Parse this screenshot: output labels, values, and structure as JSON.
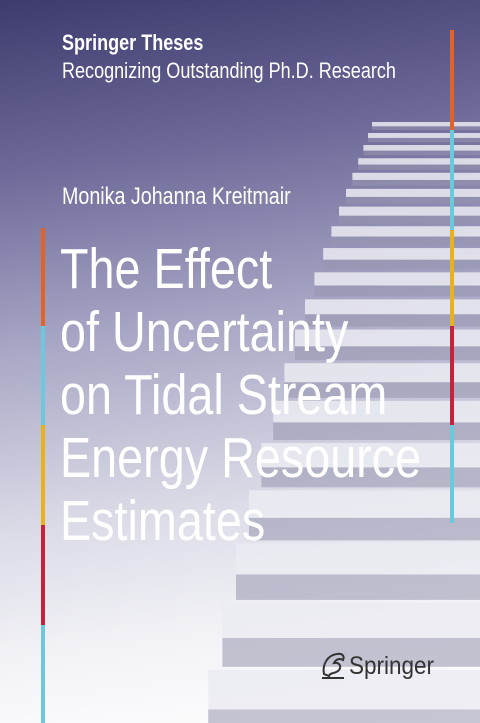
{
  "series": {
    "name": "Springer Theses",
    "subtitle": "Recognizing Outstanding Ph.D. Research"
  },
  "author": "Monika Johanna Kreitmair",
  "title_lines": [
    "The Effect",
    "of Uncertainty",
    "on Tidal Stream",
    "Energy Resource",
    "Estimates"
  ],
  "publisher": "Springer"
}
